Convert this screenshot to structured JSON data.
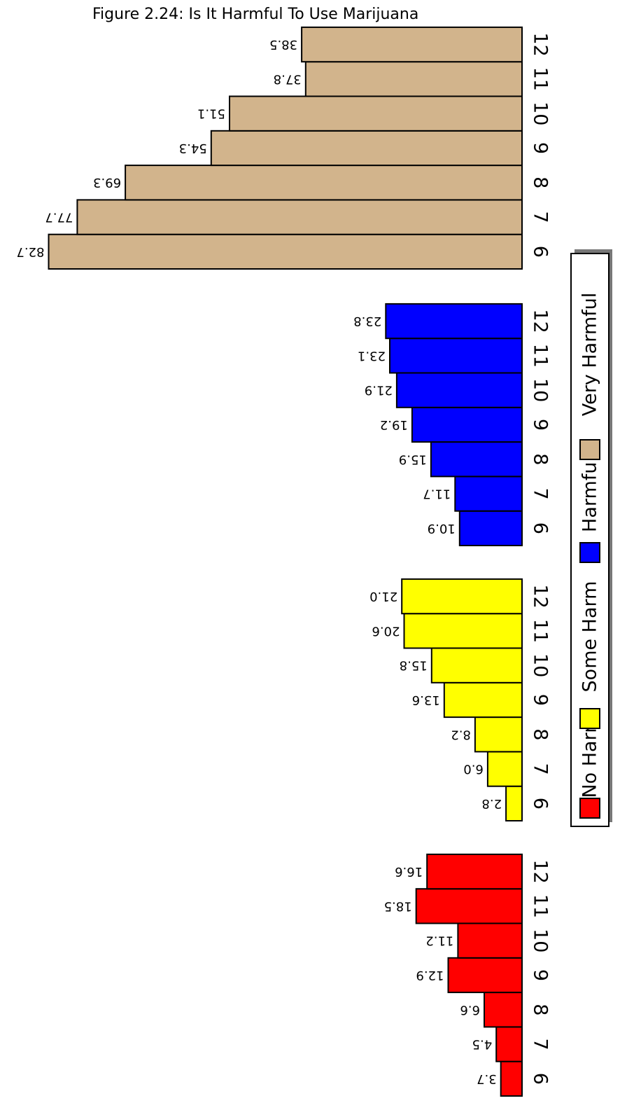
{
  "chart_data": {
    "type": "bar",
    "orientation": "horizontal",
    "title": "Figure 2.24: Is It Harmful To Use Marijuana",
    "categories": [
      "6",
      "7",
      "8",
      "9",
      "10",
      "11",
      "12"
    ],
    "series": [
      {
        "name": "No Harm",
        "color": "#ff0000",
        "values": [
          3.7,
          4.5,
          6.6,
          12.9,
          11.2,
          18.5,
          16.6
        ]
      },
      {
        "name": "Some Harm",
        "color": "#ffff00",
        "values": [
          2.8,
          6.0,
          8.2,
          13.6,
          15.8,
          20.6,
          21.0
        ]
      },
      {
        "name": "Harmful",
        "color": "#0000ff",
        "values": [
          10.9,
          11.7,
          15.9,
          19.2,
          21.9,
          23.1,
          23.8
        ]
      },
      {
        "name": "Very Harmful",
        "color": "#d2b48c",
        "values": [
          82.7,
          77.7,
          69.3,
          54.3,
          51.1,
          37.8,
          38.5
        ]
      }
    ],
    "value_labels": "rotated 180°, shown at bar ends",
    "category_labels": "rotated 90°, right of bars",
    "legend_position": "right",
    "grid": false
  }
}
